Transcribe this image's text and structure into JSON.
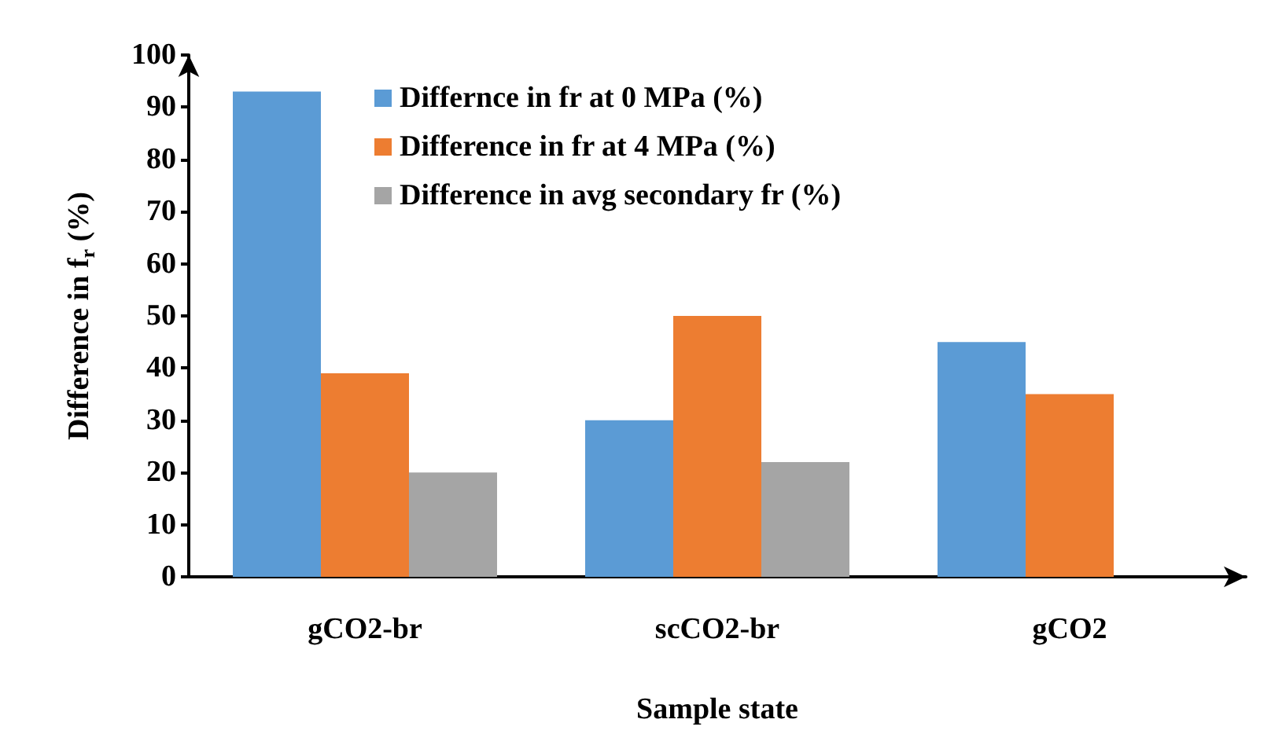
{
  "chart_data": {
    "type": "bar",
    "xlabel": "Sample state",
    "ylabel": "Difference in f$_{r}$ (%)",
    "categories": [
      "gCO2-br",
      "scCO2-br",
      "gCO2"
    ],
    "series": [
      {
        "name": "Differnce in fr at 0 MPa (%)",
        "color": "#5b9bd5",
        "values": [
          93,
          30,
          45
        ]
      },
      {
        "name": "Difference in fr at 4 MPa (%)",
        "color": "#ed7d31",
        "values": [
          39,
          50,
          35
        ]
      },
      {
        "name": "Difference in avg secondary fr (%)",
        "color": "#a5a5a5",
        "values": [
          20,
          22,
          null
        ]
      }
    ],
    "ylim": [
      0,
      100
    ],
    "yticks": [
      0,
      10,
      20,
      30,
      40,
      50,
      60,
      70,
      80,
      90,
      100
    ],
    "grid": false,
    "legend": "top"
  }
}
